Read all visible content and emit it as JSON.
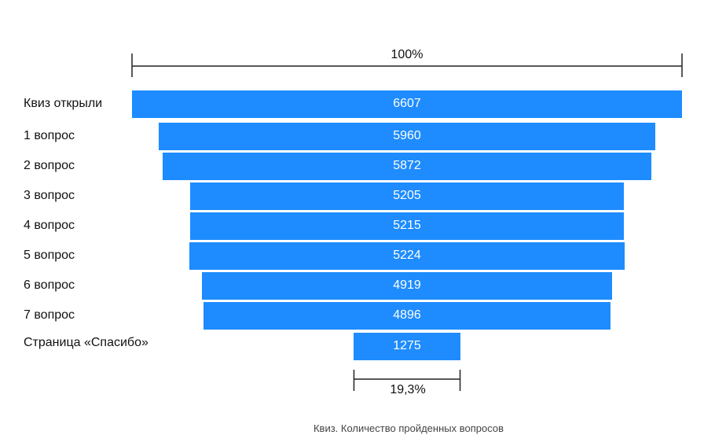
{
  "chart_data": {
    "type": "bar",
    "orientation": "horizontal-funnel",
    "categories": [
      "Квиз открыли",
      "1 вопрос",
      "2 вопрос",
      "3 вопрос",
      "4 вопрос",
      "5 вопрос",
      "6 вопрос",
      "7 вопрос",
      "Страница «Спасибо»"
    ],
    "values": [
      6607,
      5960,
      5872,
      5205,
      5215,
      5224,
      4919,
      4896,
      1275
    ],
    "value_labels": [
      "6607",
      "5960",
      "5872",
      "5205",
      "5215",
      "5224",
      "4919",
      "4896",
      "1275"
    ],
    "top_bracket_label": "100%",
    "bottom_bracket_label": "19,3%",
    "caption": "Квиз. Количество пройденных вопросов",
    "bar_color": "#1e8cff",
    "label_color": "#ffffff"
  }
}
